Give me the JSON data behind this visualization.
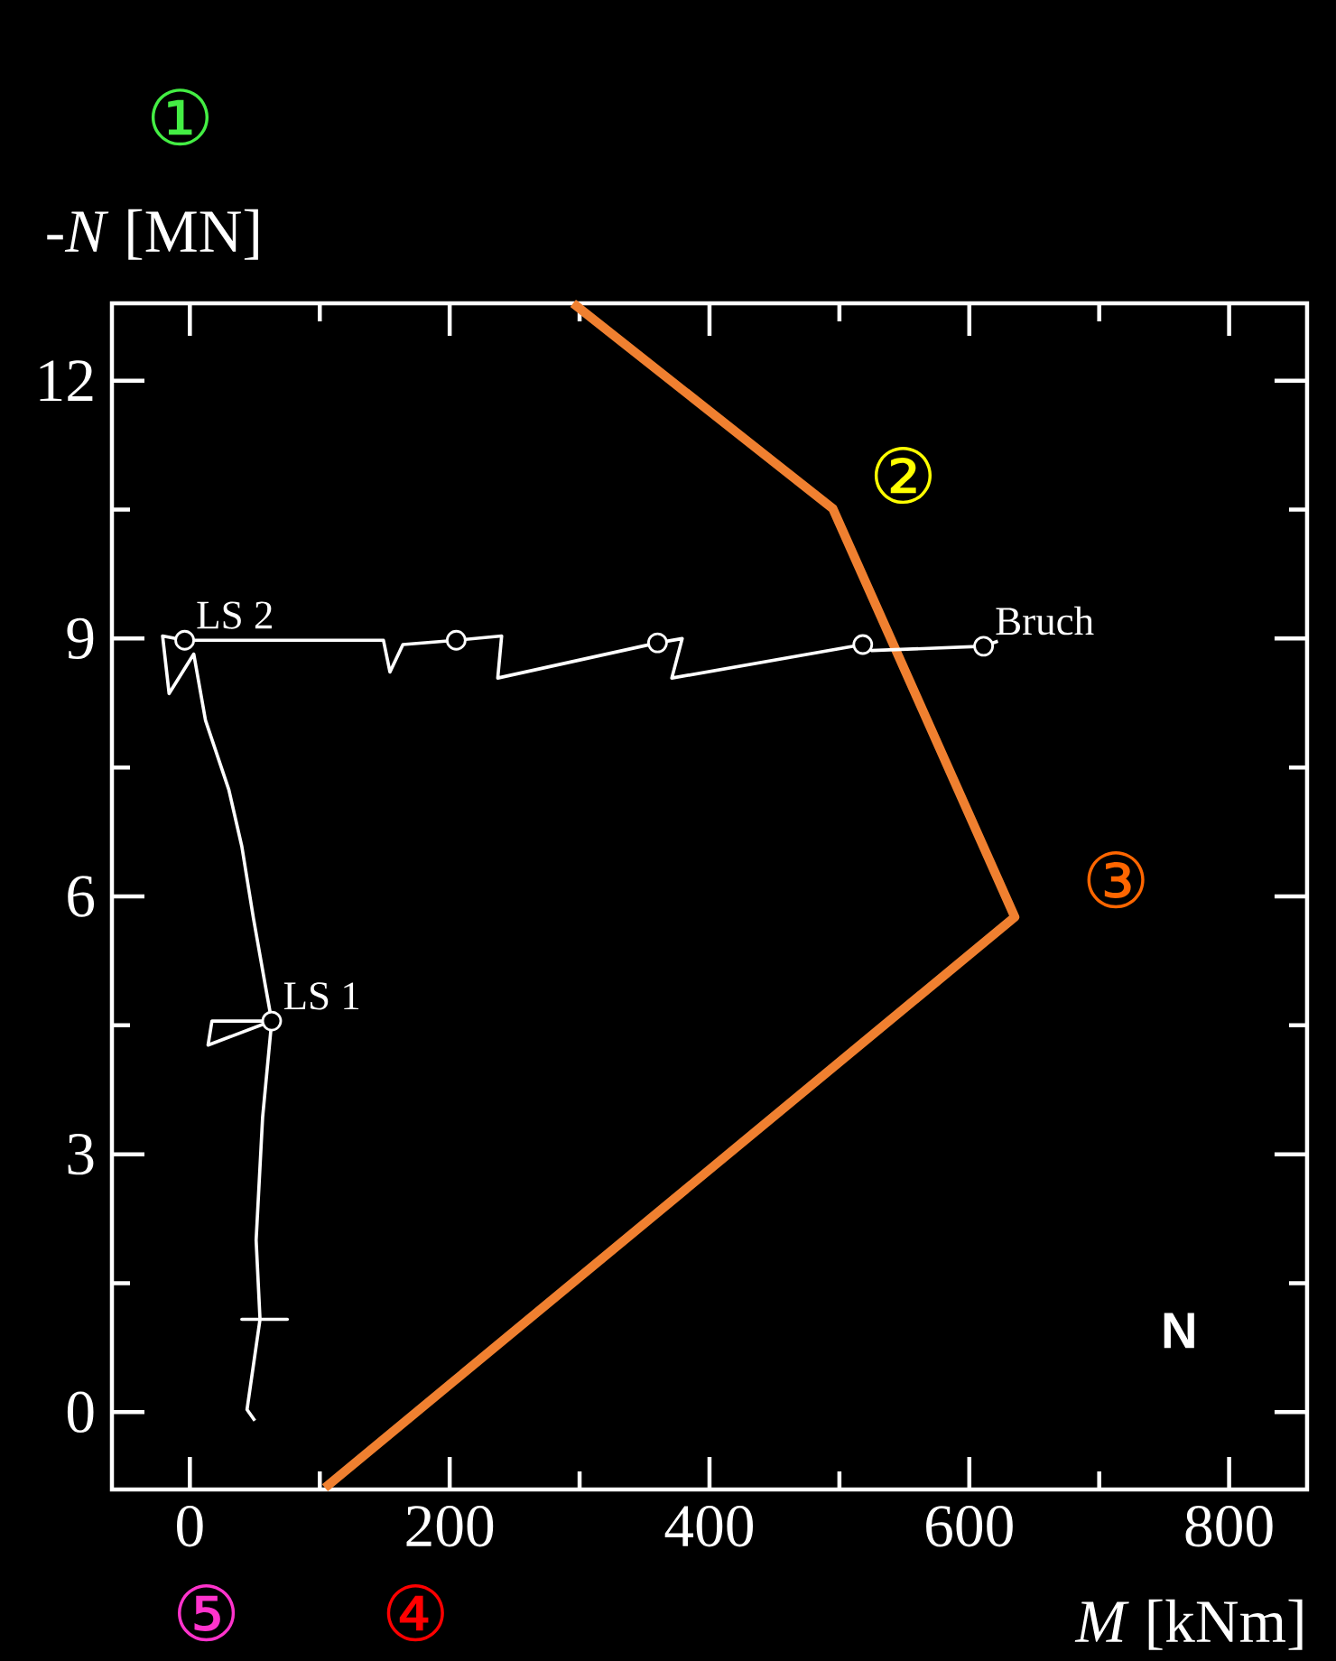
{
  "chart_data": {
    "type": "line",
    "xlabel": "*M* [kNm]",
    "ylabel": "-*N* [MN]",
    "xlim": [
      -60,
      860
    ],
    "ylim": [
      -0.9,
      12.9
    ],
    "xticks": [
      0,
      200,
      400,
      600,
      800
    ],
    "yticks": [
      0,
      3,
      6,
      9,
      12
    ],
    "series": [
      {
        "color": "#f08030",
        "marker": "none",
        "x": [
          295,
          495,
          635,
          104
        ],
        "values": [
          12.9,
          10.51,
          5.76,
          -0.88
        ]
      },
      {
        "color": "#ffffff",
        "marker": "none",
        "x": [
          50,
          44,
          54,
          40,
          75,
          54,
          51,
          56,
          63,
          14,
          17,
          63,
          58,
          49,
          40,
          30,
          12,
          3,
          -16,
          -21,
          -4,
          149,
          154,
          164,
          205,
          240,
          237,
          360,
          379,
          371,
          518,
          525,
          611,
          622
        ],
        "values": [
          -0.1,
          0.03,
          1.08,
          1.08,
          1.08,
          1.08,
          2.0,
          3.43,
          4.55,
          4.27,
          4.55,
          4.55,
          4.97,
          5.74,
          6.58,
          7.24,
          8.05,
          8.82,
          8.36,
          9.03,
          8.98,
          8.98,
          8.61,
          8.93,
          8.98,
          9.03,
          8.54,
          8.95,
          9.0,
          8.54,
          8.93,
          8.86,
          8.91,
          8.97
        ]
      },
      {
        "type": "scatter",
        "color": "#ffffff",
        "marker": "circle",
        "x": [
          -4,
          205,
          360,
          518,
          611,
          63
        ],
        "values": [
          8.98,
          8.98,
          8.95,
          8.93,
          8.91,
          4.55
        ]
      }
    ],
    "annotations": [
      "①",
      "②",
      "③",
      "④",
      "⑤",
      "**N**",
      {
        "text": "LS 2",
        "x": -4,
        "y": 8.98
      },
      {
        "text": "LS 1",
        "x": 63,
        "y": 4.55
      },
      {
        "text": "Bruch",
        "x": 611,
        "y": 8.91
      }
    ]
  }
}
